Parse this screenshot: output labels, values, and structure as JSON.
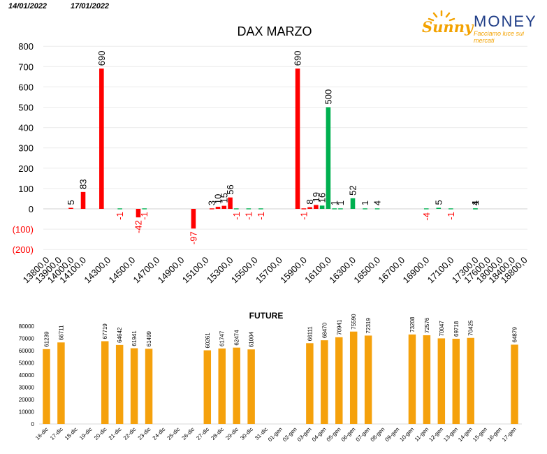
{
  "header": {
    "date_left": "14/01/2022",
    "date_right": "17/01/2022"
  },
  "logo": {
    "sunny": "Sunny",
    "money": "MONEY",
    "tagline": "Facciamo luce sui mercati",
    "icon": "sun-icon"
  },
  "colors": {
    "call": "#ff0000",
    "put": "#00b050",
    "future": "#f5a10c",
    "negative_label": "#ff0000"
  },
  "chart_data": [
    {
      "type": "bar",
      "title": "DAX MARZO",
      "ylim": [
        -200,
        800
      ],
      "yticks": [
        {
          "value": 800,
          "label": "800"
        },
        {
          "value": 700,
          "label": "700"
        },
        {
          "value": 600,
          "label": "600"
        },
        {
          "value": 500,
          "label": "500"
        },
        {
          "value": 400,
          "label": "400"
        },
        {
          "value": 300,
          "label": "300"
        },
        {
          "value": 200,
          "label": "200"
        },
        {
          "value": 100,
          "label": "100"
        },
        {
          "value": 0,
          "label": "0"
        },
        {
          "value": -100,
          "label": "(100)"
        },
        {
          "value": -200,
          "label": "(200)"
        }
      ],
      "grid": true,
      "slots": [
        13800,
        13850,
        13900,
        13950,
        14000,
        14050,
        14100,
        14150,
        14200,
        14250,
        14300,
        14350,
        14400,
        14450,
        14500,
        14550,
        14600,
        14650,
        14700,
        14750,
        14800,
        14850,
        14900,
        14950,
        15000,
        15050,
        15100,
        15150,
        15200,
        15250,
        15300,
        15350,
        15400,
        15450,
        15500,
        15550,
        15600,
        15650,
        15700,
        15750,
        15800,
        15850,
        15900,
        15950,
        16000,
        16050,
        16100,
        16150,
        16200,
        16250,
        16300,
        16350,
        16400,
        16450,
        16500,
        16550,
        16600,
        16650,
        16700,
        16750,
        16800,
        16850,
        16900,
        16950,
        17000,
        17050,
        17100,
        17150,
        17200,
        17250,
        17300,
        17400,
        17600,
        17800,
        18000,
        18200,
        18400,
        18600,
        18800
      ],
      "x_tick_labels": [
        "13800,0",
        "13900,0",
        "14000,0",
        "14100,0",
        "14300,0",
        "14500,0",
        "14700,0",
        "14900,0",
        "15100,0",
        "15300,0",
        "15500,0",
        "15700,0",
        "15900,0",
        "16100,0",
        "16300,0",
        "16500,0",
        "16700,0",
        "16900,0",
        "17100,0",
        "17300,0",
        "17600,0",
        "18000,0",
        "18400,0",
        "18800,0"
      ],
      "x_tick_values": [
        13800,
        13900,
        14000,
        14100,
        14300,
        14500,
        14700,
        14900,
        15100,
        15300,
        15500,
        15700,
        15900,
        16100,
        16300,
        16500,
        16700,
        16900,
        17100,
        17300,
        17600,
        18000,
        18400,
        18800
      ],
      "series": [
        {
          "key": "call",
          "points": [
            {
              "x": 14000,
              "y": 5
            },
            {
              "x": 14100,
              "y": 83
            },
            {
              "x": 14250,
              "y": 690
            },
            {
              "x": 14550,
              "y": -42
            },
            {
              "x": 15000,
              "y": -97
            },
            {
              "x": 15150,
              "y": 3
            },
            {
              "x": 15200,
              "y": 10
            },
            {
              "x": 15250,
              "y": 15
            },
            {
              "x": 15300,
              "y": 56
            },
            {
              "x": 15850,
              "y": 690
            },
            {
              "x": 15900,
              "y": -1
            },
            {
              "x": 15950,
              "y": 8
            },
            {
              "x": 16000,
              "y": 19
            }
          ]
        },
        {
          "key": "put",
          "points": [
            {
              "x": 14400,
              "y": -1
            },
            {
              "x": 14600,
              "y": -1
            },
            {
              "x": 15350,
              "y": -1
            },
            {
              "x": 15450,
              "y": -1
            },
            {
              "x": 15550,
              "y": -1
            },
            {
              "x": 16050,
              "y": 16
            },
            {
              "x": 16100,
              "y": 500
            },
            {
              "x": 16150,
              "y": 1
            },
            {
              "x": 16200,
              "y": 1
            },
            {
              "x": 16300,
              "y": 52
            },
            {
              "x": 16400,
              "y": 1
            },
            {
              "x": 16500,
              "y": 4
            },
            {
              "x": 16900,
              "y": -4
            },
            {
              "x": 17000,
              "y": 5
            },
            {
              "x": 17100,
              "y": -1
            },
            {
              "x": 17300,
              "y": 4
            },
            {
              "x": 17350,
              "y": 1
            }
          ]
        }
      ]
    },
    {
      "type": "bar",
      "title": "FUTURE",
      "ylim": [
        0,
        80000
      ],
      "yticks": [
        {
          "value": 80000,
          "label": "80000"
        },
        {
          "value": 70000,
          "label": "70000"
        },
        {
          "value": 60000,
          "label": "60000"
        },
        {
          "value": 50000,
          "label": "50000"
        },
        {
          "value": 40000,
          "label": "40000"
        },
        {
          "value": 30000,
          "label": "30000"
        },
        {
          "value": 20000,
          "label": "20000"
        },
        {
          "value": 10000,
          "label": "10000"
        },
        {
          "value": 0,
          "label": "0"
        }
      ],
      "categories": [
        "16-dic",
        "17-dic",
        "18-dic",
        "19-dic",
        "20-dic",
        "21-dic",
        "22-dic",
        "23-dic",
        "24-dic",
        "25-dic",
        "26-dic",
        "27-dic",
        "28-dic",
        "29-dic",
        "30-dic",
        "31-dic",
        "01-gen",
        "02-gen",
        "03-gen",
        "04-gen",
        "05-gen",
        "06-gen",
        "07-gen",
        "08-gen",
        "09-gen",
        "10-gen",
        "11-gen",
        "12-gen",
        "13-gen",
        "14-gen",
        "15-gen",
        "16-gen",
        "17-gen"
      ],
      "values": [
        61239,
        66711,
        null,
        null,
        67719,
        64642,
        61941,
        61499,
        null,
        null,
        null,
        60261,
        61747,
        62474,
        61004,
        null,
        null,
        null,
        66111,
        68470,
        70941,
        75590,
        72319,
        null,
        null,
        73208,
        72576,
        70047,
        69718,
        70425,
        null,
        null,
        64879
      ],
      "value_labels": [
        "61239",
        "66711",
        "",
        "",
        "67719",
        "64642",
        "61941",
        "61499",
        "",
        "",
        "",
        "60261",
        "61747",
        "62474",
        "61004",
        "",
        "",
        "",
        "66111",
        "68470",
        "70941",
        "75590",
        "72319",
        "",
        "",
        "73208",
        "72576",
        "70047",
        "69718",
        "70425",
        "",
        "",
        "64879"
      ]
    }
  ]
}
